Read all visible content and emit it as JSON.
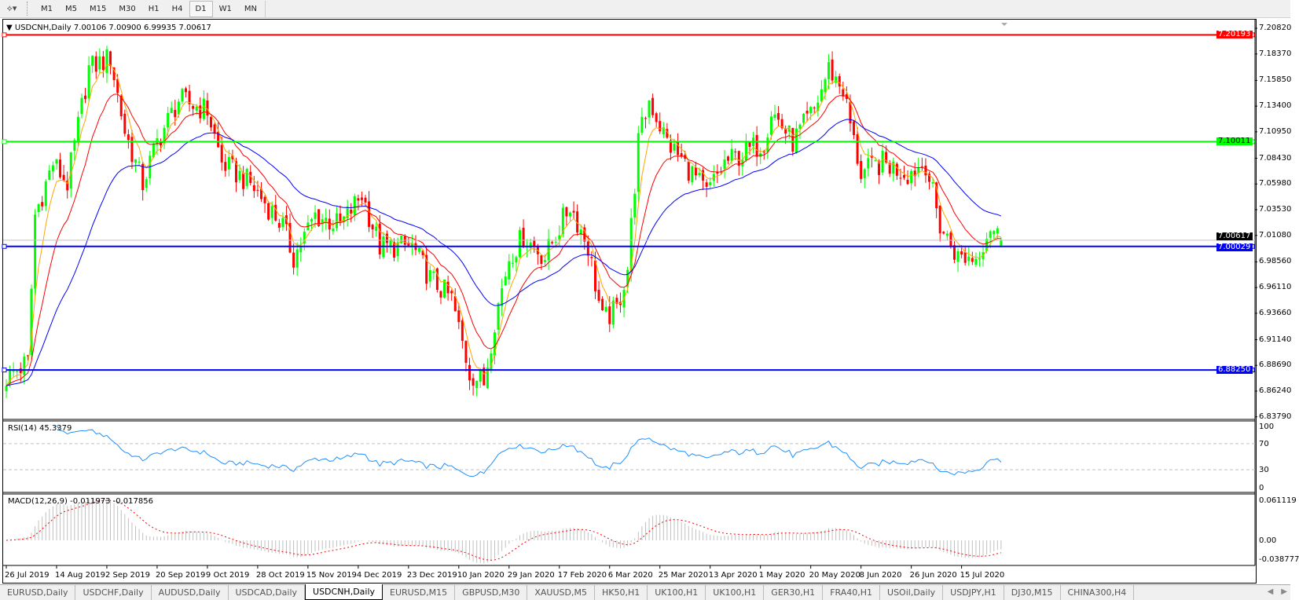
{
  "toolbar": {
    "chart_tools_icon": "line-tools-icon",
    "timeframes": [
      {
        "label": "M1",
        "active": false
      },
      {
        "label": "M5",
        "active": false
      },
      {
        "label": "M15",
        "active": false
      },
      {
        "label": "M30",
        "active": false
      },
      {
        "label": "H1",
        "active": false
      },
      {
        "label": "H4",
        "active": false
      },
      {
        "label": "D1",
        "active": true
      },
      {
        "label": "W1",
        "active": false
      },
      {
        "label": "MN",
        "active": false
      }
    ]
  },
  "chart": {
    "header": "USDCNH,Daily  7.00106 7.00900 6.99935 7.00617",
    "colors": {
      "bull": "#00ff00",
      "bear": "#ff0000",
      "ma_fast": "#ffa500",
      "ma_mid": "#ff0000",
      "ma_slow": "#0000ff",
      "rsi": "#1e90ff",
      "macd_hist": "#c0c0c0",
      "macd_signal": "#ff0000"
    },
    "last_bar": {
      "open": 7.00106,
      "high": 7.009,
      "low": 6.99935,
      "close": 7.00617
    },
    "price_ticks": [
      "7.20820",
      "7.18370",
      "7.15850",
      "7.13400",
      "7.10950",
      "7.08430",
      "7.05980",
      "7.03530",
      "7.01080",
      "6.98560",
      "6.96110",
      "6.93660",
      "6.91140",
      "6.88690",
      "6.86240",
      "6.83790"
    ],
    "hlines": [
      {
        "price": "7.20193",
        "color": "#ff0000"
      },
      {
        "price": "7.10011",
        "color": "#00ff00"
      },
      {
        "price": "7.00029",
        "color": "#0000ff"
      },
      {
        "price": "6.88250",
        "color": "#0000ff"
      }
    ],
    "current_price": "7.00617",
    "price_path": [
      [
        0,
        6.875
      ],
      [
        6,
        6.89
      ],
      [
        8,
        7.03
      ],
      [
        13,
        7.08
      ],
      [
        17,
        7.06
      ],
      [
        23,
        7.17
      ],
      [
        29,
        7.18
      ],
      [
        33,
        7.11
      ],
      [
        38,
        7.06
      ],
      [
        42,
        7.1
      ],
      [
        48,
        7.14
      ],
      [
        56,
        7.13
      ],
      [
        60,
        7.08
      ],
      [
        68,
        7.06
      ],
      [
        77,
        7.02
      ],
      [
        80,
        6.99
      ],
      [
        86,
        7.03
      ],
      [
        93,
        7.02
      ],
      [
        99,
        7.05
      ],
      [
        104,
        7.0
      ],
      [
        113,
        7.0
      ],
      [
        118,
        6.97
      ],
      [
        124,
        6.95
      ],
      [
        129,
        6.88
      ],
      [
        133,
        6.87
      ],
      [
        136,
        6.93
      ],
      [
        140,
        6.99
      ],
      [
        144,
        7.01
      ],
      [
        150,
        6.99
      ],
      [
        157,
        7.04
      ],
      [
        162,
        7.0
      ],
      [
        166,
        6.93
      ],
      [
        170,
        6.94
      ],
      [
        173,
        6.98
      ],
      [
        176,
        7.1
      ],
      [
        179,
        7.14
      ],
      [
        184,
        7.1
      ],
      [
        191,
        7.07
      ],
      [
        195,
        7.05
      ],
      [
        200,
        7.08
      ],
      [
        206,
        7.09
      ],
      [
        211,
        7.1
      ],
      [
        213,
        7.13
      ],
      [
        219,
        7.1
      ],
      [
        225,
        7.13
      ],
      [
        229,
        7.17
      ],
      [
        233,
        7.15
      ],
      [
        236,
        7.1
      ],
      [
        238,
        7.07
      ],
      [
        244,
        7.08
      ],
      [
        251,
        7.07
      ],
      [
        256,
        7.08
      ],
      [
        260,
        7.02
      ],
      [
        265,
        6.99
      ],
      [
        270,
        6.99
      ],
      [
        274,
        7.02
      ],
      [
        277,
        7.00617
      ]
    ],
    "dates": [
      "26 Jul 2019",
      "14 Aug 2019",
      "2 Sep 2019",
      "20 Sep 2019",
      "9 Oct 2019",
      "28 Oct 2019",
      "15 Nov 2019",
      "4 Dec 2019",
      "23 Dec 2019",
      "10 Jan 2020",
      "29 Jan 2020",
      "17 Feb 2020",
      "6 Mar 2020",
      "25 Mar 2020",
      "13 Apr 2020",
      "1 May 2020",
      "20 May 2020",
      "8 Jun 2020",
      "26 Jun 2020",
      "15 Jul 2020"
    ]
  },
  "rsi": {
    "label": "RSI(14) 45.3379",
    "ticks": [
      "100",
      "70",
      "30",
      "0"
    ]
  },
  "macd": {
    "label": "MACD(12,26,9) -0.011973 -0.017856",
    "ticks": [
      "0.061119",
      "0.00",
      "-0.038777"
    ]
  },
  "tabs": [
    "EURUSD,Daily",
    "USDCHF,Daily",
    "AUDUSD,Daily",
    "USDCAD,Daily",
    "USDCNH,Daily",
    "EURUSD,M15",
    "GBPUSD,M30",
    "XAUUSD,M5",
    "HK50,H1",
    "UK100,H1",
    "UK100,H1",
    "GER30,H1",
    "FRA40,H1",
    "USOil,Daily",
    "USDJPY,H1",
    "DJ30,M15",
    "CHINA300,H4"
  ],
  "active_tab": "USDCNH,Daily"
}
